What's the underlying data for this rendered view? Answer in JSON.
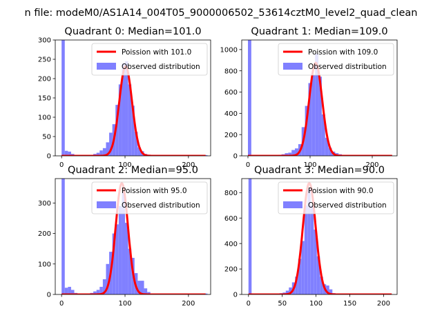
{
  "suptitle": "n file: modeM0/AS1A14_004T05_9000006502_53614cztM0_level2_quad_clean",
  "colors": {
    "histogram": "#8080ff",
    "curve": "#ff0000"
  },
  "chart_data": [
    {
      "type": "bar+line",
      "title": "Quadrant 0: Median=101.0",
      "xlim": [
        -10,
        235
      ],
      "ylim": [
        0,
        300
      ],
      "xticks": [
        0,
        100,
        200
      ],
      "yticks": [
        0,
        50,
        100,
        150,
        200,
        250,
        300
      ],
      "legend": {
        "placement": "top-right",
        "entries": [
          "Poission with 101.0",
          "Observed distribution"
        ]
      },
      "median": 101.0,
      "hist": {
        "bin_width": 5,
        "bin_starts": [
          0,
          5,
          10,
          15,
          20,
          25,
          30,
          35,
          40,
          45,
          50,
          55,
          60,
          65,
          70,
          75,
          80,
          85,
          90,
          95,
          100,
          105,
          110,
          115,
          120,
          125,
          130,
          135,
          140,
          145,
          150,
          155,
          160,
          165,
          170,
          175,
          180,
          185,
          190,
          195,
          200,
          205,
          210,
          215,
          220,
          225
        ],
        "counts": [
          300,
          13,
          11,
          5,
          2,
          2,
          2,
          2,
          2,
          2,
          5,
          8,
          14,
          20,
          35,
          60,
          82,
          132,
          185,
          240,
          245,
          185,
          130,
          62,
          22,
          12,
          5,
          3,
          2,
          2,
          2,
          2,
          2,
          2,
          2,
          2,
          2,
          2,
          2,
          2,
          2,
          2,
          2,
          2,
          2,
          2
        ]
      },
      "curve": {
        "peak": 232,
        "sigma": 10.05
      }
    },
    {
      "type": "bar+line",
      "title": "Quadrant 1: Median=109.0",
      "xlim": [
        -10,
        240
      ],
      "ylim": [
        0,
        1090
      ],
      "xticks": [
        0,
        100,
        200
      ],
      "yticks": [
        0,
        200,
        400,
        600,
        800,
        1000
      ],
      "legend": {
        "placement": "top-right",
        "entries": [
          "Poission with 109.0",
          "Observed distribution"
        ]
      },
      "median": 109.0,
      "hist": {
        "bin_width": 5.4,
        "bin_starts": [
          0,
          5.4,
          10.8,
          16.2,
          21.6,
          27,
          32.4,
          37.8,
          43.2,
          48.6,
          54,
          59.4,
          64.8,
          70.2,
          75.6,
          81,
          86.4,
          91.8,
          97.2,
          102.6,
          108,
          113.4,
          118.8,
          124.2,
          129.6,
          135,
          140.4,
          145.8,
          151.2,
          156.6,
          162,
          167.4,
          172.8,
          178.2,
          183.6,
          189,
          194.4,
          199.8,
          205.2,
          210.6,
          216,
          221.4,
          226.8
        ],
        "counts": [
          1090,
          8,
          5,
          5,
          5,
          5,
          5,
          5,
          8,
          10,
          15,
          25,
          30,
          55,
          70,
          110,
          270,
          470,
          685,
          760,
          960,
          745,
          390,
          170,
          75,
          40,
          25,
          15,
          8,
          5,
          5,
          5,
          5,
          5,
          5,
          5,
          5,
          5,
          5,
          5,
          5,
          5,
          5
        ]
      },
      "curve": {
        "peak": 875,
        "sigma": 10.44
      }
    },
    {
      "type": "bar+line",
      "title": "Quadrant 2: Median=95.0",
      "xlim": [
        -10,
        235
      ],
      "ylim": [
        0,
        380
      ],
      "xticks": [
        0,
        100,
        200
      ],
      "yticks": [
        0,
        100,
        200,
        300
      ],
      "legend": {
        "placement": "top-right",
        "entries": [
          "Poission with 95.0",
          "Observed distribution"
        ]
      },
      "median": 95.0,
      "hist": {
        "bin_width": 5,
        "bin_starts": [
          0,
          5,
          10,
          15,
          20,
          25,
          30,
          35,
          40,
          45,
          50,
          55,
          60,
          65,
          70,
          75,
          80,
          85,
          90,
          95,
          100,
          105,
          110,
          115,
          120,
          125,
          130,
          135,
          140,
          145,
          150,
          155,
          160,
          165,
          170,
          175,
          180,
          185,
          190,
          195,
          200,
          205,
          210,
          215,
          220,
          225
        ],
        "counts": [
          380,
          22,
          25,
          15,
          5,
          3,
          3,
          3,
          3,
          5,
          10,
          15,
          25,
          50,
          100,
          140,
          200,
          230,
          290,
          335,
          235,
          150,
          120,
          70,
          45,
          45,
          20,
          8,
          3,
          3,
          3,
          3,
          3,
          3,
          3,
          3,
          3,
          3,
          3,
          3,
          3,
          3,
          3,
          3,
          3,
          3
        ]
      },
      "curve": {
        "peak": 365,
        "sigma": 9.75
      }
    },
    {
      "type": "bar+line",
      "title": "Quadrant 3: Median=90.0",
      "xlim": [
        -10,
        220
      ],
      "ylim": [
        0,
        910
      ],
      "xticks": [
        0,
        50,
        100,
        150,
        200
      ],
      "yticks": [
        0,
        200,
        400,
        600,
        800
      ],
      "legend": {
        "placement": "top-right",
        "entries": [
          "Poission with 90.0",
          "Observed distribution"
        ]
      },
      "median": 90.0,
      "hist": {
        "bin_width": 4.6,
        "bin_starts": [
          0,
          4.6,
          9.2,
          13.8,
          18.4,
          23,
          27.6,
          32.2,
          36.8,
          41.4,
          46,
          50.6,
          55.2,
          59.8,
          64.4,
          69,
          73.6,
          78.2,
          82.8,
          87.4,
          92,
          96.6,
          101.2,
          105.8,
          110.4,
          115,
          119.6,
          124.2,
          128.8,
          133.4,
          138,
          142.6,
          147.2,
          151.8,
          156.4,
          161,
          165.6,
          170.2,
          174.8,
          179.4,
          184,
          188.6,
          193.2,
          197.8,
          202.4,
          207
        ],
        "counts": [
          910,
          5,
          5,
          5,
          5,
          5,
          5,
          5,
          5,
          8,
          10,
          15,
          30,
          55,
          95,
          140,
          280,
          420,
          700,
          830,
          700,
          510,
          300,
          140,
          80,
          70,
          40,
          10,
          5,
          5,
          5,
          5,
          5,
          5,
          5,
          5,
          5,
          5,
          5,
          5,
          5,
          5,
          5,
          5,
          5,
          5
        ]
      },
      "curve": {
        "peak": 875,
        "sigma": 9.49
      }
    }
  ]
}
